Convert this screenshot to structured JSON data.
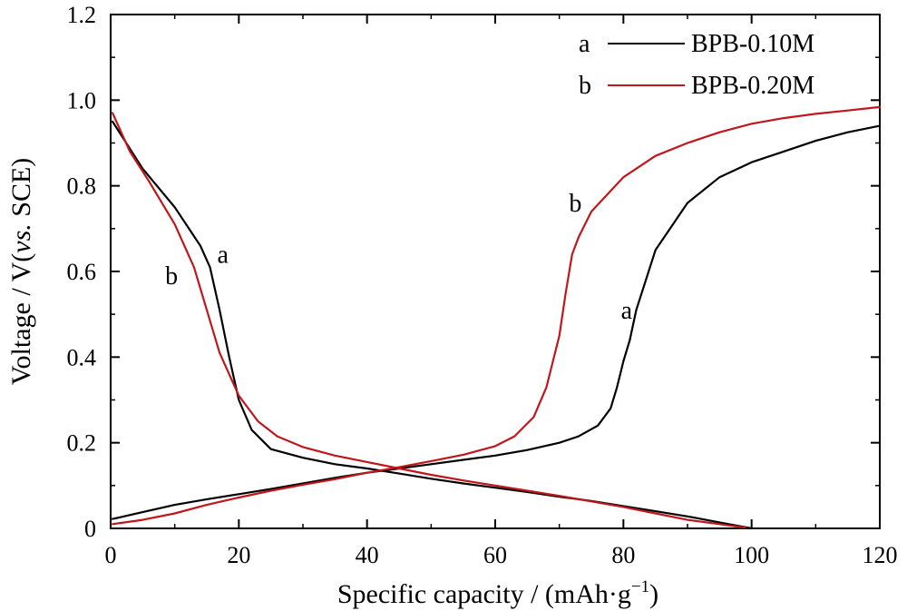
{
  "chart_data": {
    "type": "line",
    "xlabel_main": "Specific capacity / (mAh·g",
    "xlabel_sup": "−1",
    "xlabel_tail": ")",
    "ylabel_pre": "Voltage / V(",
    "ylabel_italic": "vs.",
    "ylabel_post": " SCE)",
    "xlim": [
      0,
      120
    ],
    "ylim": [
      0,
      1.2
    ],
    "xticks": [
      0,
      20,
      40,
      60,
      80,
      100,
      120
    ],
    "xtick_labels": [
      "0",
      "20",
      "40",
      "60",
      "80",
      "100",
      "120"
    ],
    "yticks": [
      0,
      0.2,
      0.4,
      0.6,
      0.8,
      1.0,
      1.2
    ],
    "ytick_labels": [
      "0",
      "0.2",
      "0.4",
      "0.6",
      "0.8",
      "1.0",
      "1.2"
    ],
    "grid": false,
    "legend_position": "top-right",
    "legend": [
      {
        "key": "a",
        "label": "BPB-0.10M",
        "color": "#000000"
      },
      {
        "key": "b",
        "label": "BPB-0.20M",
        "color": "#c0171c"
      }
    ],
    "series": [
      {
        "name": "BPB-0.10M",
        "key": "a",
        "color": "#000000",
        "segments": [
          {
            "x": [
              0.3,
              5,
              10,
              14,
              15.5,
              17,
              18.5,
              20,
              22,
              25,
              30,
              35,
              40,
              45,
              50,
              55,
              60,
              65,
              70,
              75,
              80,
              85,
              90,
              95,
              100
            ],
            "y": [
              0.95,
              0.84,
              0.75,
              0.66,
              0.61,
              0.51,
              0.4,
              0.3,
              0.23,
              0.185,
              0.165,
              0.15,
              0.14,
              0.128,
              0.116,
              0.105,
              0.095,
              0.085,
              0.074,
              0.064,
              0.052,
              0.04,
              0.028,
              0.014,
              0.0
            ]
          },
          {
            "x": [
              0.3,
              5,
              10,
              15,
              20,
              25,
              30,
              35,
              40,
              45,
              50,
              55,
              60,
              65,
              70,
              73,
              76,
              78,
              79,
              80,
              81,
              82,
              85,
              90,
              95,
              100,
              105,
              110,
              115,
              120
            ],
            "y": [
              0.022,
              0.038,
              0.055,
              0.068,
              0.08,
              0.092,
              0.105,
              0.118,
              0.13,
              0.14,
              0.15,
              0.16,
              0.17,
              0.183,
              0.2,
              0.215,
              0.24,
              0.28,
              0.33,
              0.39,
              0.44,
              0.51,
              0.65,
              0.76,
              0.82,
              0.855,
              0.88,
              0.905,
              0.925,
              0.94
            ]
          }
        ]
      },
      {
        "name": "BPB-0.20M",
        "key": "b",
        "color": "#c0171c",
        "segments": [
          {
            "x": [
              0.3,
              3,
              6,
              10,
              13,
              15,
              17,
              20,
              23,
              26,
              30,
              35,
              40,
              45,
              50,
              55,
              60,
              65,
              70,
              75,
              80,
              85,
              90,
              95,
              99
            ],
            "y": [
              0.97,
              0.88,
              0.81,
              0.71,
              0.61,
              0.51,
              0.41,
              0.31,
              0.25,
              0.215,
              0.19,
              0.17,
              0.155,
              0.14,
              0.125,
              0.112,
              0.1,
              0.088,
              0.076,
              0.063,
              0.05,
              0.035,
              0.02,
              0.01,
              0.002
            ]
          },
          {
            "x": [
              0.3,
              5,
              10,
              15,
              20,
              25,
              30,
              35,
              40,
              45,
              50,
              55,
              60,
              63,
              66,
              68,
              69,
              70,
              71,
              72,
              73,
              75,
              80,
              85,
              90,
              95,
              100,
              105,
              110,
              115,
              120
            ],
            "y": [
              0.01,
              0.02,
              0.035,
              0.055,
              0.072,
              0.088,
              0.102,
              0.115,
              0.13,
              0.143,
              0.157,
              0.172,
              0.192,
              0.215,
              0.26,
              0.33,
              0.39,
              0.45,
              0.55,
              0.64,
              0.68,
              0.74,
              0.82,
              0.87,
              0.9,
              0.925,
              0.945,
              0.958,
              0.968,
              0.976,
              0.984
            ]
          }
        ]
      }
    ],
    "annotations": [
      {
        "text": "a",
        "x": 17.5,
        "y": 0.62
      },
      {
        "text": "b",
        "x": 9.5,
        "y": 0.57
      },
      {
        "text": "b",
        "x": 72.5,
        "y": 0.74
      },
      {
        "text": "a",
        "x": 80.5,
        "y": 0.49
      }
    ]
  }
}
